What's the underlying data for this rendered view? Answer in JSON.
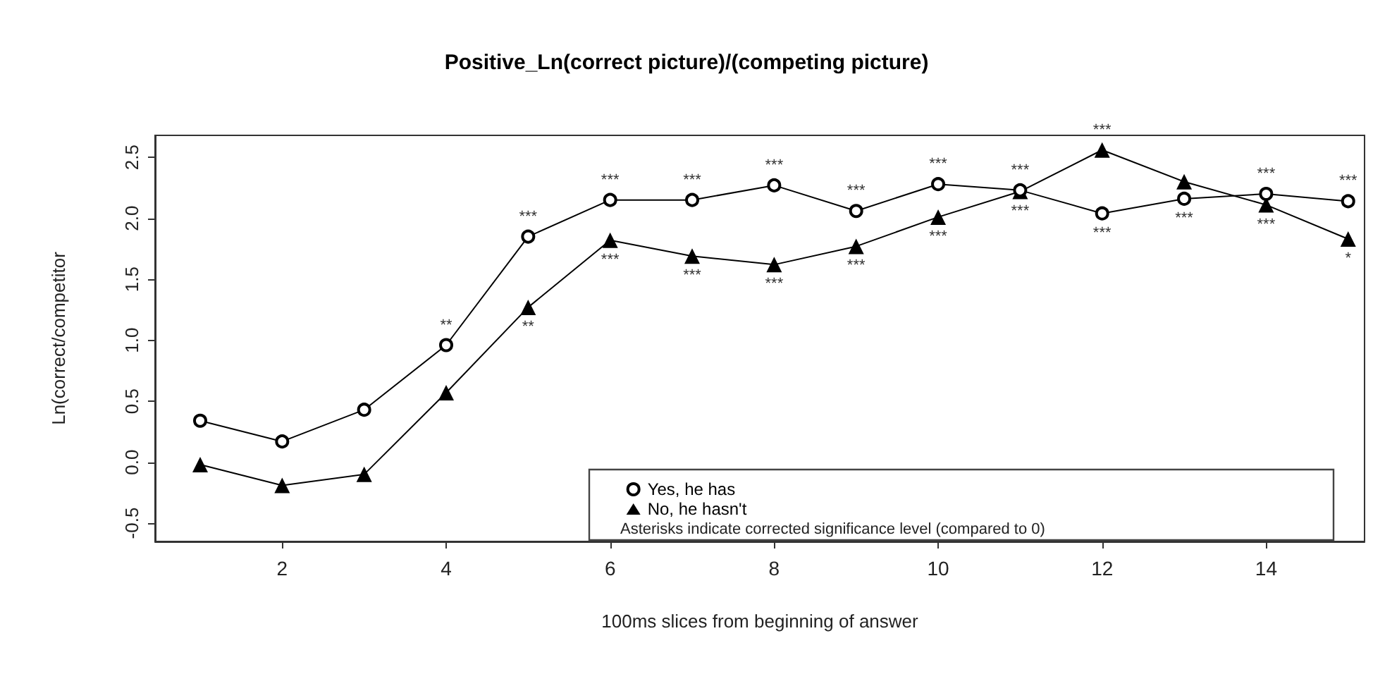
{
  "chart_data": {
    "type": "line",
    "title": "Positive_Ln(correct picture)/(competing picture)",
    "xlabel": "100ms slices from beginning of answer",
    "ylabel": "Ln(correct/competitor",
    "x": [
      1,
      2,
      3,
      4,
      5,
      6,
      7,
      8,
      9,
      10,
      11,
      12,
      13,
      14,
      15
    ],
    "series": [
      {
        "name": "Yes, he has",
        "color": "#000000",
        "marker": "circle",
        "values": [
          0.34,
          0.17,
          0.43,
          0.96,
          1.85,
          2.15,
          2.15,
          2.27,
          2.06,
          2.28,
          2.23,
          2.04,
          2.16,
          2.2,
          2.14
        ]
      },
      {
        "name": "No, he hasn't",
        "color": "#000000",
        "marker": "triangle",
        "values": [
          -0.02,
          -0.19,
          -0.1,
          0.57,
          1.27,
          1.82,
          1.69,
          1.62,
          1.77,
          2.01,
          2.22,
          2.56,
          2.3,
          2.11,
          1.83
        ]
      }
    ],
    "xlim": [
      0.45,
      15.2
    ],
    "xticks": [
      2,
      4,
      6,
      8,
      10,
      12,
      14
    ],
    "ylim": [
      -0.65,
      2.68
    ],
    "yticks": [
      {
        "value": -0.5,
        "label": "-0.5"
      },
      {
        "value": 0,
        "label": "0.0"
      },
      {
        "value": 0.5,
        "label": "0.5"
      },
      {
        "value": 1,
        "label": "1.0"
      },
      {
        "value": 1.5,
        "label": "1.5"
      },
      {
        "value": 2,
        "label": "2.0"
      },
      {
        "value": 2.5,
        "label": "2.5"
      }
    ],
    "legend": "bottom",
    "line_style": "solid",
    "annotations": [
      {
        "text": "**",
        "x": 4,
        "y": 0.96
      },
      {
        "text": "***",
        "x": 5,
        "y": 1.85
      },
      {
        "text": "***",
        "x": 6,
        "y": 2.15
      },
      {
        "text": "***",
        "x": 7,
        "y": 2.15
      },
      {
        "text": "***",
        "x": 8,
        "y": 2.27
      },
      {
        "text": "***",
        "x": 9,
        "y": 2.06
      },
      {
        "text": "***",
        "x": 10,
        "y": 2.28
      },
      {
        "text": "***",
        "x": 11,
        "y": 2.23
      },
      {
        "text": "***",
        "x": 12,
        "y": 2.04
      },
      {
        "text": "***",
        "x": 12,
        "y": 2.56
      },
      {
        "text": "***",
        "x": 13,
        "y": 2.16
      },
      {
        "text": "***",
        "x": 14,
        "y": 2.2
      },
      {
        "text": "***",
        "x": 15,
        "y": 2.14
      },
      {
        "text": "**",
        "x": 5,
        "y": 1.27
      },
      {
        "text": "***",
        "x": 6,
        "y": 1.82
      },
      {
        "text": "***",
        "x": 7,
        "y": 1.69
      },
      {
        "text": "***",
        "x": 8,
        "y": 1.62
      },
      {
        "text": "***",
        "x": 9,
        "y": 1.77
      },
      {
        "text": "***",
        "x": 10,
        "y": 2.01
      },
      {
        "text": "***",
        "x": 11,
        "y": 2.22
      },
      {
        "text": "***",
        "x": 14,
        "y": 2.11
      },
      {
        "text": "*",
        "x": 15,
        "y": 1.83
      },
      "Asterisks indicate corrected significance level (compared to 0)"
    ]
  }
}
